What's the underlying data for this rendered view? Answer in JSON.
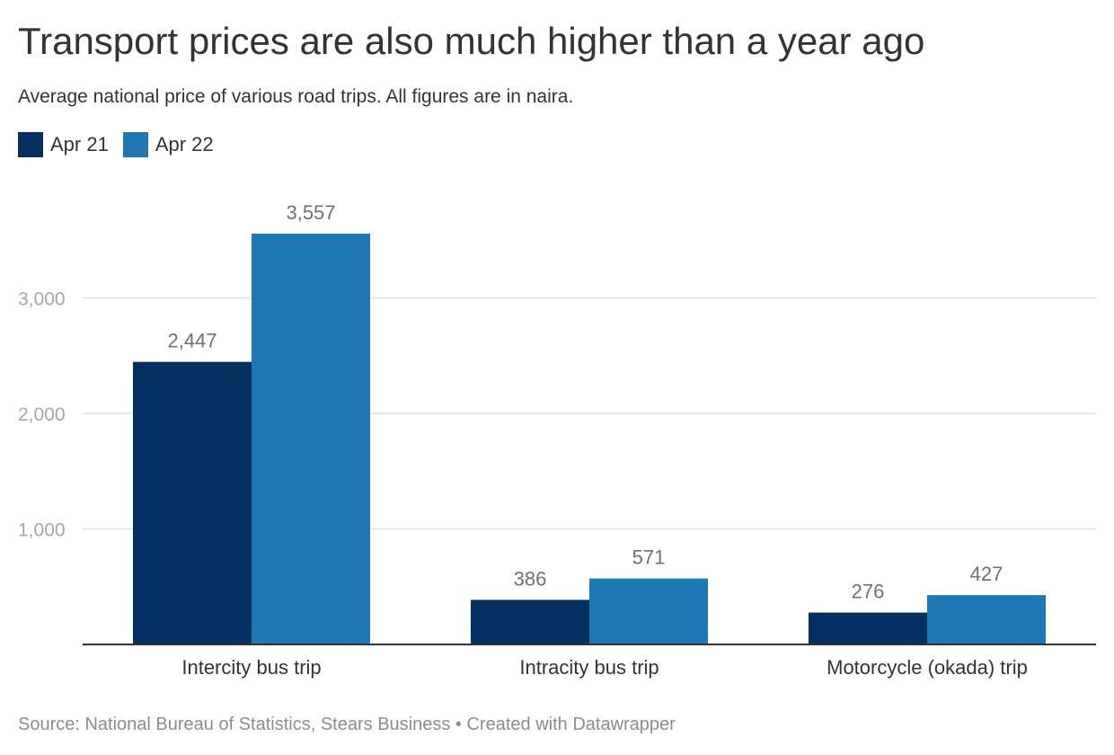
{
  "title": "Transport prices are also much higher than a year ago",
  "subtitle": "Average national price of various road trips. All figures are in naira.",
  "legend": [
    {
      "label": "Apr 21",
      "color": "#03305f"
    },
    {
      "label": "Apr 22",
      "color": "#1f77b4"
    }
  ],
  "footer": {
    "source": "Source: National Bureau of Statistics, Stears Business",
    "separator": " • ",
    "credit": "Created with Datawrapper"
  },
  "chart_data": {
    "type": "bar",
    "categories": [
      "Intercity bus trip",
      "Intracity bus trip",
      "Motorcycle (okada) trip"
    ],
    "series": [
      {
        "name": "Apr 21",
        "values": [
          2447,
          386,
          276
        ],
        "color": "#03305f"
      },
      {
        "name": "Apr 22",
        "values": [
          3557,
          571,
          427
        ],
        "color": "#1f77b4"
      }
    ],
    "yticks": [
      1000,
      2000,
      3000
    ],
    "ytick_labels": [
      "1,000",
      "2,000",
      "3,000"
    ],
    "data_labels": [
      [
        "2,447",
        "386",
        "276"
      ],
      [
        "3,557",
        "571",
        "427"
      ]
    ],
    "ylim": [
      0,
      3557
    ],
    "grid": true,
    "legend_position": "top-left"
  }
}
